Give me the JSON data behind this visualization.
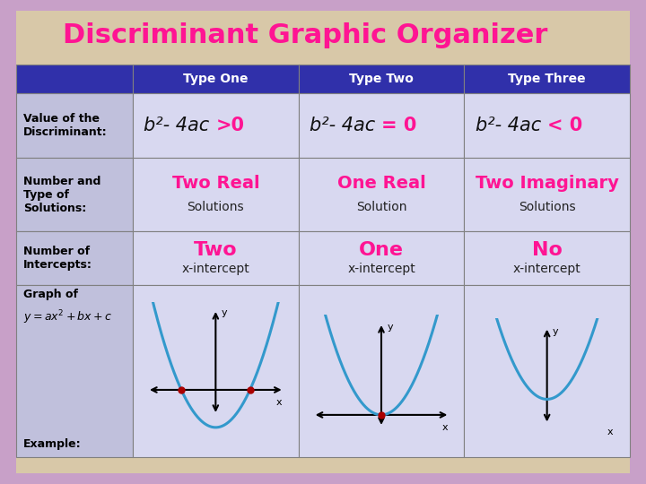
{
  "title": "Discriminant Graphic Organizer",
  "title_color": "#FF1493",
  "title_fontsize": 22,
  "bg_outer": "#C8A0C8",
  "bg_inner": "#D8C8A8",
  "header_bg": "#3030AA",
  "header_text_color": "#FFFFFF",
  "cell_bg_light": "#C0C0DC",
  "cell_bg_white": "#D8D8F0",
  "headers": [
    "Type One",
    "Type Two",
    "Type Three"
  ],
  "solutions_main": [
    "Two Real",
    "One Real",
    "Two Imaginary"
  ],
  "solutions_sub": [
    "Solutions",
    "Solution",
    "Solutions"
  ],
  "solutions_color": "#FF1493",
  "intercepts_main": [
    "Two",
    "One",
    "No"
  ],
  "intercepts_sub": [
    "x-intercept",
    "x-intercept",
    "x-intercept"
  ],
  "intercepts_color": "#FF1493",
  "curve_color": "#3399CC",
  "dot_color": "#AA0000",
  "border_colors": [
    "#FF00FF",
    "#00FFFF",
    "#FF6600",
    "#00FF00",
    "#FF0000",
    "#0000FF"
  ]
}
